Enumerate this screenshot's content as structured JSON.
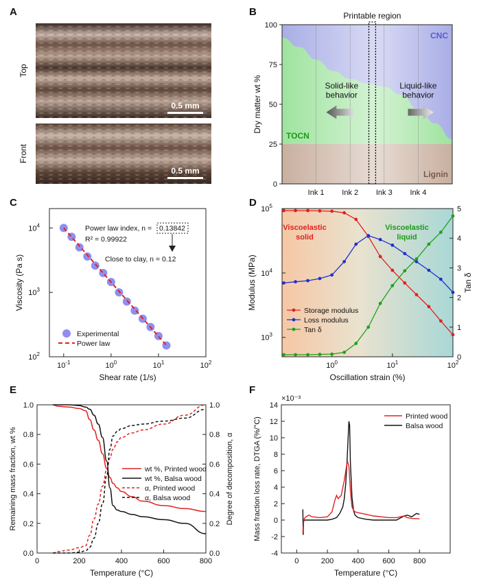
{
  "panels": {
    "A": {
      "label": "A",
      "side_top": "Top",
      "side_front": "Front",
      "scale_top": "0.5 mm",
      "scale_front": "0.5 mm"
    },
    "B": {
      "label": "B",
      "title": "Printable region",
      "ylabel": "Dry matter wt %",
      "yticks": [
        "100",
        "75",
        "50",
        "25",
        "0"
      ],
      "xticks": [
        "Ink 1",
        "Ink 2",
        "Ink 3",
        "Ink 4"
      ],
      "region_cnc": "CNC",
      "region_tocn": "TOCN",
      "region_lignin": "Lignin",
      "solid_l1": "Solid-like",
      "solid_l2": "behavior",
      "liquid_l1": "Liquid-like",
      "liquid_l2": "behavior",
      "colors": {
        "cnc": "#a9aee6",
        "tocn": "#9fe39f",
        "lignin": "#c9b0a0"
      }
    },
    "C": {
      "label": "C",
      "xlabel": "Shear rate (1/s)",
      "ylabel": "Viscosity (Pa s)",
      "annot_index": "Power law index, n =",
      "annot_index_val": "0.13842",
      "annot_r2": "R² = 0.99922",
      "annot_clay": "Close to clay, n = 0.12",
      "legend": [
        "Experimental",
        "Power law"
      ]
    },
    "D": {
      "label": "D",
      "xlabel": "Oscillation strain (%)",
      "ylabel": "Modulus (MPa)",
      "ylabel2": "Tan δ",
      "solid_l1": "Viscoelastic",
      "solid_l2": "solid",
      "liquid_l1": "Viscoelastic",
      "liquid_l2": "liquid",
      "legend": [
        "Storage modulus",
        "Loss modulus",
        "Tan δ"
      ]
    },
    "E": {
      "label": "E",
      "xlabel": "Temperature (°C)",
      "ylabel": "Remaining mass fraction, wt %",
      "ylabel2": "Degree of decomposition, α",
      "legend": [
        "wt %, Printed wood",
        "wt %, Balsa wood",
        "α, Printed wood",
        "α, Balsa wood"
      ]
    },
    "F": {
      "label": "F",
      "xlabel": "Temperature (°C)",
      "ylabel": "Mass fraction loss rate, DTGA (%/°C)",
      "multiplier": "×10⁻³",
      "legend": [
        "Printed wood",
        "Balsa wood"
      ]
    }
  },
  "chart_data": [
    {
      "type": "area",
      "panel": "B",
      "title": "Printable region",
      "ylabel": "Dry matter wt %",
      "ylim": [
        0,
        100
      ],
      "categories": [
        "Ink 1",
        "Ink 2",
        "Ink 3",
        "Ink 4"
      ],
      "boundary_x": [
        0,
        0.5,
        1,
        1.5,
        2,
        2.5,
        3,
        3.5,
        4,
        4.5,
        5
      ],
      "boundary_y": [
        92,
        86,
        78,
        71,
        66,
        63,
        61,
        56,
        47,
        38,
        28
      ],
      "lignin_level": 25,
      "printable_x": [
        2.55,
        2.75
      ]
    },
    {
      "type": "scatter",
      "panel": "C",
      "xscale": "log",
      "yscale": "log",
      "xlim": [
        0.05,
        100
      ],
      "ylim": [
        100,
        20000
      ],
      "xlabel": "Shear rate (1/s)",
      "ylabel": "Viscosity (Pa s)",
      "x": [
        0.1,
        0.147,
        0.215,
        0.316,
        0.464,
        0.681,
        1.0,
        1.47,
        2.15,
        3.16,
        4.64,
        6.81,
        10.0,
        14.7
      ],
      "y": [
        10000,
        7300,
        5000,
        3600,
        2600,
        2000,
        1450,
        1000,
        720,
        520,
        390,
        290,
        210,
        150
      ],
      "fit": {
        "name": "Power law",
        "n": 0.13842,
        "r2": 0.99922
      }
    },
    {
      "type": "line",
      "panel": "D",
      "xscale": "log",
      "yscale": "log",
      "xlim": [
        0.15,
        100
      ],
      "ylim": [
        500,
        100000
      ],
      "y2lim": [
        0,
        5
      ],
      "xlabel": "Oscillation strain (%)",
      "ylabel": "Modulus (MPa)",
      "y2label": "Tan δ",
      "x": [
        0.16,
        0.25,
        0.4,
        0.63,
        1.0,
        1.6,
        2.5,
        4.0,
        6.3,
        10,
        16,
        25,
        40,
        63,
        100
      ],
      "series": [
        {
          "name": "Storage modulus",
          "color": "#e02020",
          "axis": "left",
          "values": [
            93000,
            93000,
            93000,
            92000,
            91000,
            86000,
            68000,
            37000,
            18000,
            11000,
            7000,
            4600,
            3000,
            1800,
            1100
          ]
        },
        {
          "name": "Loss modulus",
          "color": "#2030d0",
          "axis": "left",
          "values": [
            7000,
            7300,
            7600,
            8200,
            9300,
            15000,
            28000,
            38000,
            33000,
            27000,
            20000,
            15000,
            11000,
            8000,
            5000
          ]
        },
        {
          "name": "Tan δ",
          "color": "#20a020",
          "axis": "right",
          "values": [
            0.07,
            0.07,
            0.07,
            0.08,
            0.09,
            0.15,
            0.45,
            1.0,
            1.8,
            2.4,
            2.9,
            3.3,
            3.8,
            4.2,
            4.75
          ]
        }
      ]
    },
    {
      "type": "line",
      "panel": "E",
      "xlim": [
        0,
        800
      ],
      "ylim": [
        0,
        1
      ],
      "y2lim": [
        0,
        1
      ],
      "xlabel": "Temperature (°C)",
      "ylabel": "Remaining mass fraction, wt %",
      "y2label": "Degree of decomposition, α",
      "x": [
        75,
        100,
        150,
        200,
        230,
        250,
        270,
        290,
        310,
        330,
        345,
        360,
        380,
        400,
        450,
        500,
        600,
        700,
        800
      ],
      "series": [
        {
          "name": "wt %, Printed wood",
          "color": "#e02020",
          "dash": false,
          "values": [
            1.0,
            0.99,
            0.985,
            0.975,
            0.96,
            0.9,
            0.83,
            0.76,
            0.67,
            0.57,
            0.51,
            0.47,
            0.44,
            0.415,
            0.38,
            0.35,
            0.32,
            0.3,
            0.28
          ]
        },
        {
          "name": "wt %, Balsa wood",
          "color": "#111111",
          "dash": false,
          "values": [
            1.0,
            1.0,
            1.0,
            0.995,
            0.985,
            0.97,
            0.93,
            0.87,
            0.78,
            0.62,
            0.44,
            0.32,
            0.29,
            0.28,
            0.26,
            0.245,
            0.225,
            0.2,
            0.13
          ]
        },
        {
          "name": "α, Printed wood",
          "color": "#e02020",
          "dash": true,
          "values": [
            0.0,
            0.01,
            0.02,
            0.035,
            0.05,
            0.12,
            0.23,
            0.33,
            0.45,
            0.56,
            0.64,
            0.7,
            0.75,
            0.78,
            0.81,
            0.83,
            0.87,
            0.93,
            1.0
          ]
        },
        {
          "name": "α, Balsa wood",
          "color": "#111111",
          "dash": true,
          "values": [
            0.0,
            0.0,
            0.0,
            0.005,
            0.015,
            0.04,
            0.1,
            0.2,
            0.33,
            0.52,
            0.7,
            0.79,
            0.82,
            0.84,
            0.86,
            0.87,
            0.89,
            0.91,
            0.97
          ]
        }
      ]
    },
    {
      "type": "line",
      "panel": "F",
      "xlim": [
        -100,
        1000
      ],
      "ylim": [
        -4,
        14
      ],
      "multiplier": "1e-3",
      "xlabel": "Temperature (°C)",
      "ylabel": "Mass fraction loss rate, DTGA (%/°C)",
      "series": [
        {
          "name": "Printed wood",
          "color": "#e02020",
          "x": [
            40,
            45,
            50,
            60,
            80,
            100,
            150,
            200,
            230,
            250,
            260,
            270,
            290,
            310,
            320,
            330,
            340,
            350,
            360,
            370,
            380,
            400,
            450,
            500,
            600,
            650,
            700,
            720,
            750,
            800
          ],
          "values": [
            -1.5,
            -0.2,
            0.2,
            0.4,
            0.6,
            0.4,
            0.3,
            0.4,
            1.0,
            2.5,
            3.0,
            2.6,
            3.0,
            4.8,
            6.0,
            7.2,
            6.5,
            3.5,
            1.6,
            1.2,
            1.0,
            0.9,
            0.7,
            0.5,
            0.3,
            0.3,
            0.5,
            0.3,
            0.2,
            0.15
          ]
        },
        {
          "name": "Balsa wood",
          "color": "#111111",
          "x": [
            40,
            42,
            45,
            50,
            60,
            80,
            100,
            150,
            200,
            230,
            260,
            280,
            300,
            310,
            320,
            330,
            340,
            345,
            350,
            360,
            370,
            380,
            400,
            450,
            500,
            600,
            650,
            700,
            720,
            750,
            780,
            800
          ],
          "values": [
            1.3,
            -1.8,
            -0.2,
            0.0,
            0.0,
            0.0,
            0.0,
            0.0,
            0.0,
            0.1,
            0.3,
            0.8,
            1.6,
            2.6,
            4.5,
            8.0,
            12.0,
            11.5,
            7.0,
            2.8,
            1.2,
            0.6,
            0.3,
            0.1,
            0.0,
            0.0,
            0.0,
            0.5,
            0.6,
            0.4,
            0.8,
            0.7
          ]
        }
      ]
    }
  ]
}
